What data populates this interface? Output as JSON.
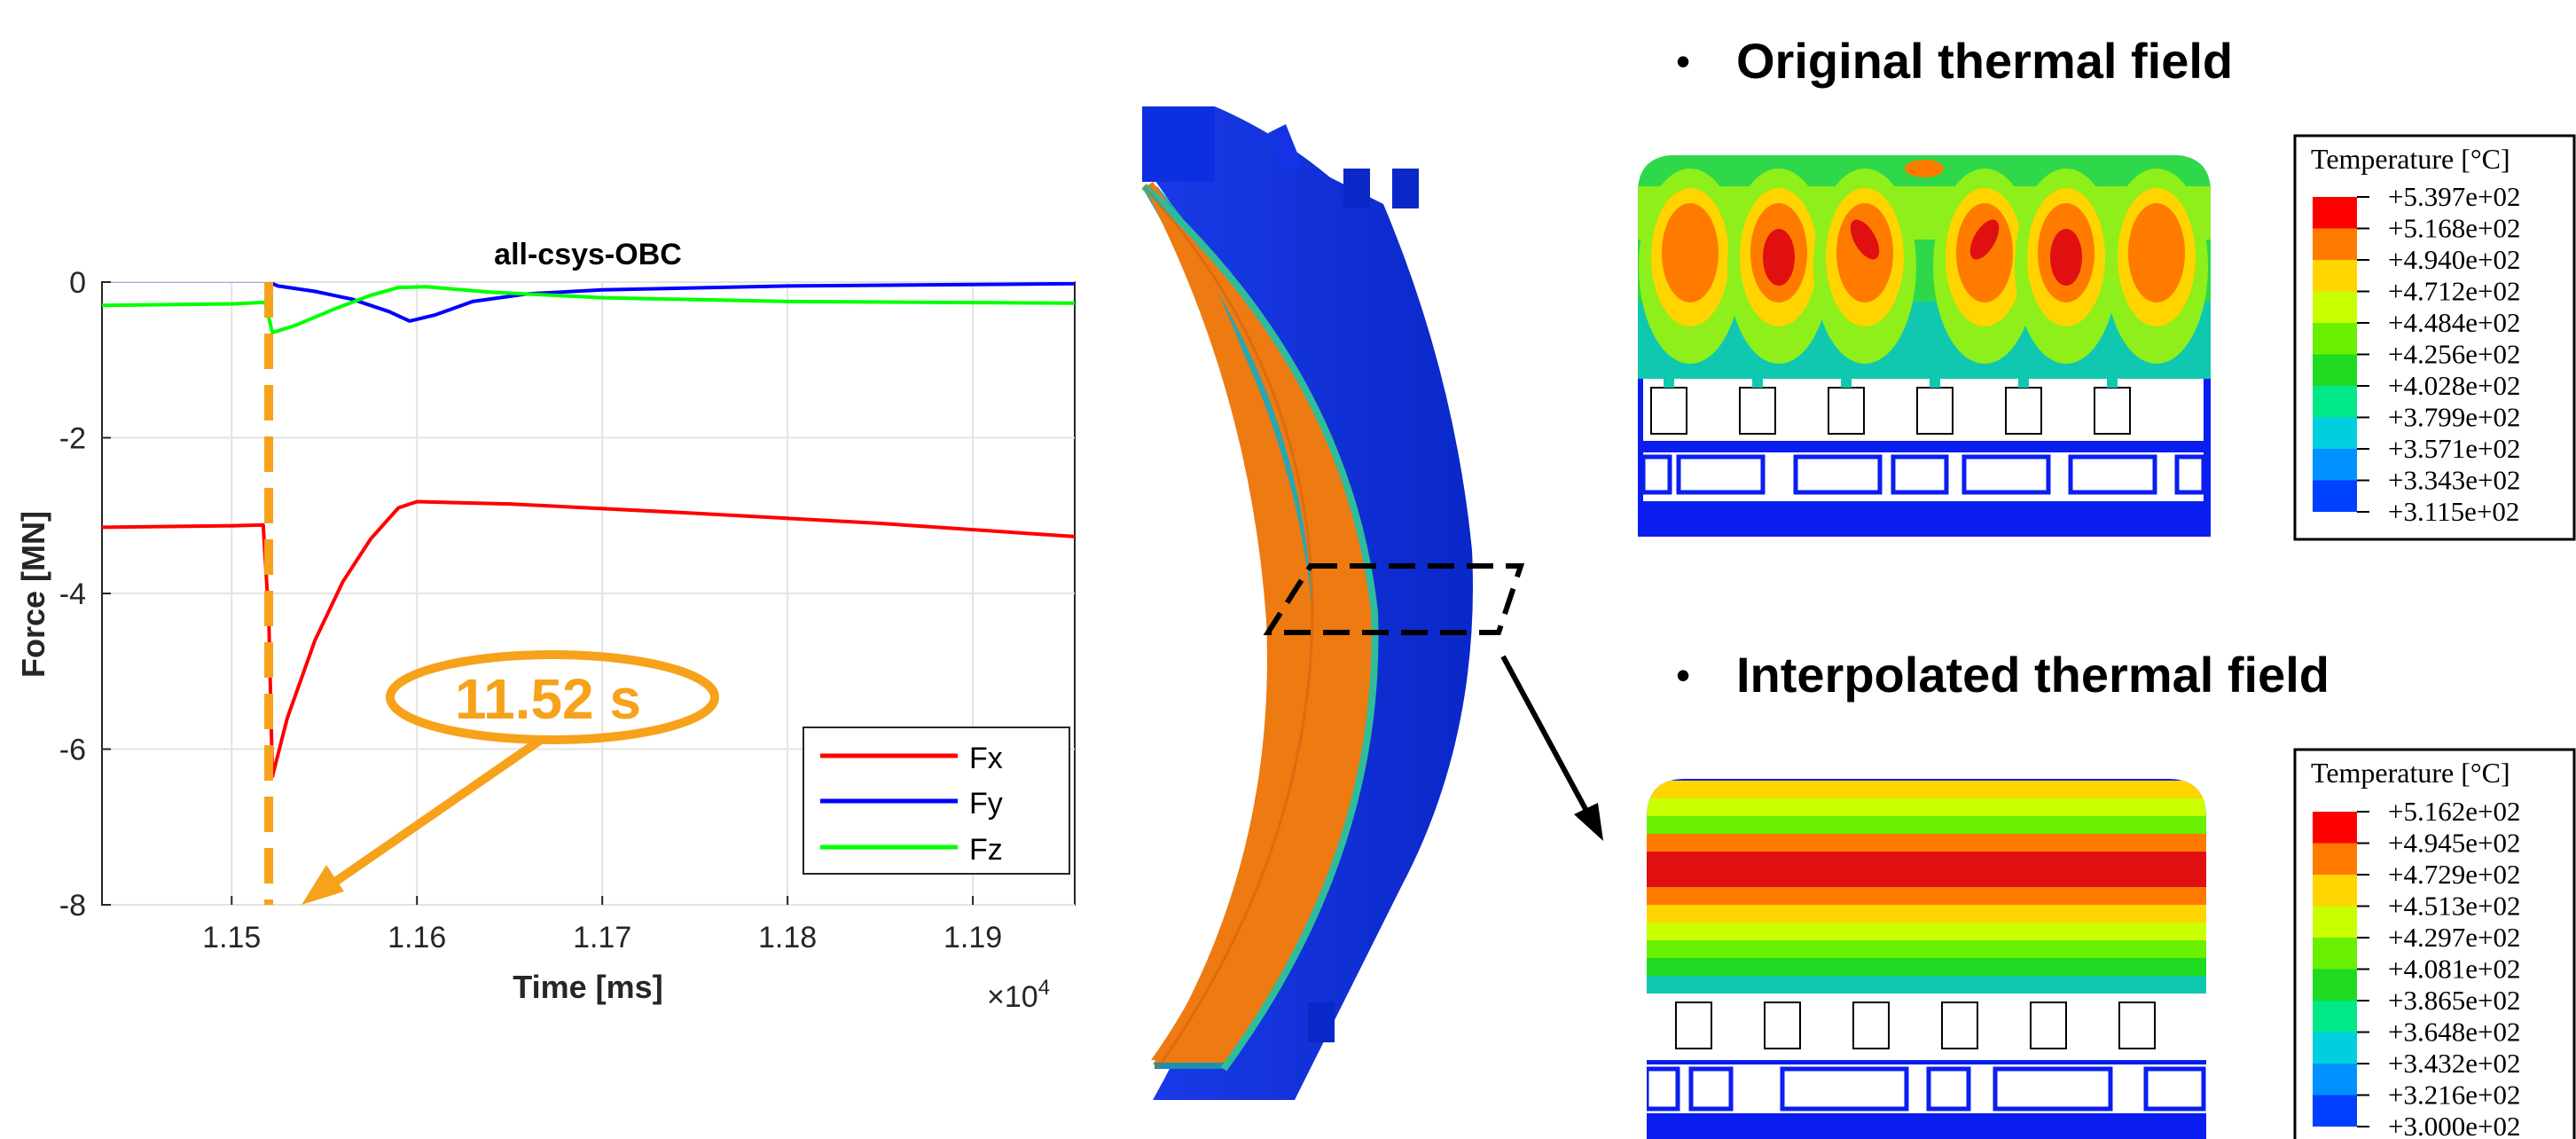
{
  "chart_data": {
    "type": "line",
    "title": "all-csys-OBC",
    "xlabel": "Time [ms]",
    "ylabel": "Force [MN]",
    "x_exponent_label": "×10",
    "x_exponent": "4",
    "xlim": [
      11430,
      11955
    ],
    "ylim": [
      -8,
      0
    ],
    "x_ticks": [
      11500,
      11600,
      11700,
      11800,
      11900
    ],
    "x_tick_labels": [
      "1.15",
      "1.16",
      "1.17",
      "1.18",
      "1.19"
    ],
    "y_ticks": [
      0,
      -2,
      -4,
      -6,
      -8
    ],
    "y_tick_labels": [
      "0",
      "-2",
      "-4",
      "-6",
      "-8"
    ],
    "grid": true,
    "legend_position": "lower-right",
    "series": [
      {
        "name": "Fx",
        "color": "#ff0000",
        "points": [
          [
            11430,
            -3.15
          ],
          [
            11500,
            -3.13
          ],
          [
            11517,
            -3.12
          ],
          [
            11520,
            -4.3
          ],
          [
            11522,
            -6.35
          ],
          [
            11530,
            -5.6
          ],
          [
            11545,
            -4.6
          ],
          [
            11560,
            -3.85
          ],
          [
            11575,
            -3.3
          ],
          [
            11590,
            -2.9
          ],
          [
            11600,
            -2.82
          ],
          [
            11650,
            -2.85
          ],
          [
            11750,
            -2.97
          ],
          [
            11850,
            -3.1
          ],
          [
            11955,
            -3.27
          ]
        ]
      },
      {
        "name": "Fy",
        "color": "#0000ff",
        "points": [
          [
            11430,
            0.02
          ],
          [
            11500,
            0.02
          ],
          [
            11518,
            0.02
          ],
          [
            11525,
            -0.05
          ],
          [
            11545,
            -0.12
          ],
          [
            11565,
            -0.22
          ],
          [
            11585,
            -0.38
          ],
          [
            11596,
            -0.5
          ],
          [
            11610,
            -0.42
          ],
          [
            11630,
            -0.25
          ],
          [
            11660,
            -0.15
          ],
          [
            11700,
            -0.1
          ],
          [
            11800,
            -0.05
          ],
          [
            11955,
            -0.02
          ]
        ]
      },
      {
        "name": "Fz",
        "color": "#00ff00",
        "points": [
          [
            11430,
            -0.3
          ],
          [
            11500,
            -0.28
          ],
          [
            11518,
            -0.26
          ],
          [
            11522,
            -0.65
          ],
          [
            11535,
            -0.55
          ],
          [
            11555,
            -0.35
          ],
          [
            11575,
            -0.17
          ],
          [
            11590,
            -0.07
          ],
          [
            11605,
            -0.06
          ],
          [
            11640,
            -0.13
          ],
          [
            11700,
            -0.2
          ],
          [
            11800,
            -0.25
          ],
          [
            11955,
            -0.27
          ]
        ]
      }
    ],
    "marker": {
      "x": 11520,
      "color": "#f7a21b"
    },
    "annotation": {
      "text": "11.52 s",
      "color": "#f7a21b"
    }
  },
  "middle": {
    "description_colors": {
      "outer": "#0a2fd6",
      "inner": "#ee7a12"
    }
  },
  "top_panel": {
    "title": "Original thermal field",
    "bullet": "•",
    "legend": {
      "title": "Temperature [°C]",
      "values": [
        "+5.397e+02",
        "+5.168e+02",
        "+4.940e+02",
        "+4.712e+02",
        "+4.484e+02",
        "+4.256e+02",
        "+4.028e+02",
        "+3.799e+02",
        "+3.571e+02",
        "+3.343e+02",
        "+3.115e+02"
      ]
    }
  },
  "bottom_panel": {
    "title": "Interpolated thermal field",
    "bullet": "•",
    "legend": {
      "title": "Temperature [°C]",
      "values": [
        "+5.162e+02",
        "+4.945e+02",
        "+4.729e+02",
        "+4.513e+02",
        "+4.297e+02",
        "+4.081e+02",
        "+3.865e+02",
        "+3.648e+02",
        "+3.432e+02",
        "+3.216e+02",
        "+3.000e+02"
      ]
    }
  },
  "legend_colors": [
    "#ff0000",
    "#ff7b00",
    "#ffd400",
    "#c9ff00",
    "#69f000",
    "#1edb22",
    "#00e887",
    "#00cfe0",
    "#0090ff",
    "#0040ff"
  ]
}
